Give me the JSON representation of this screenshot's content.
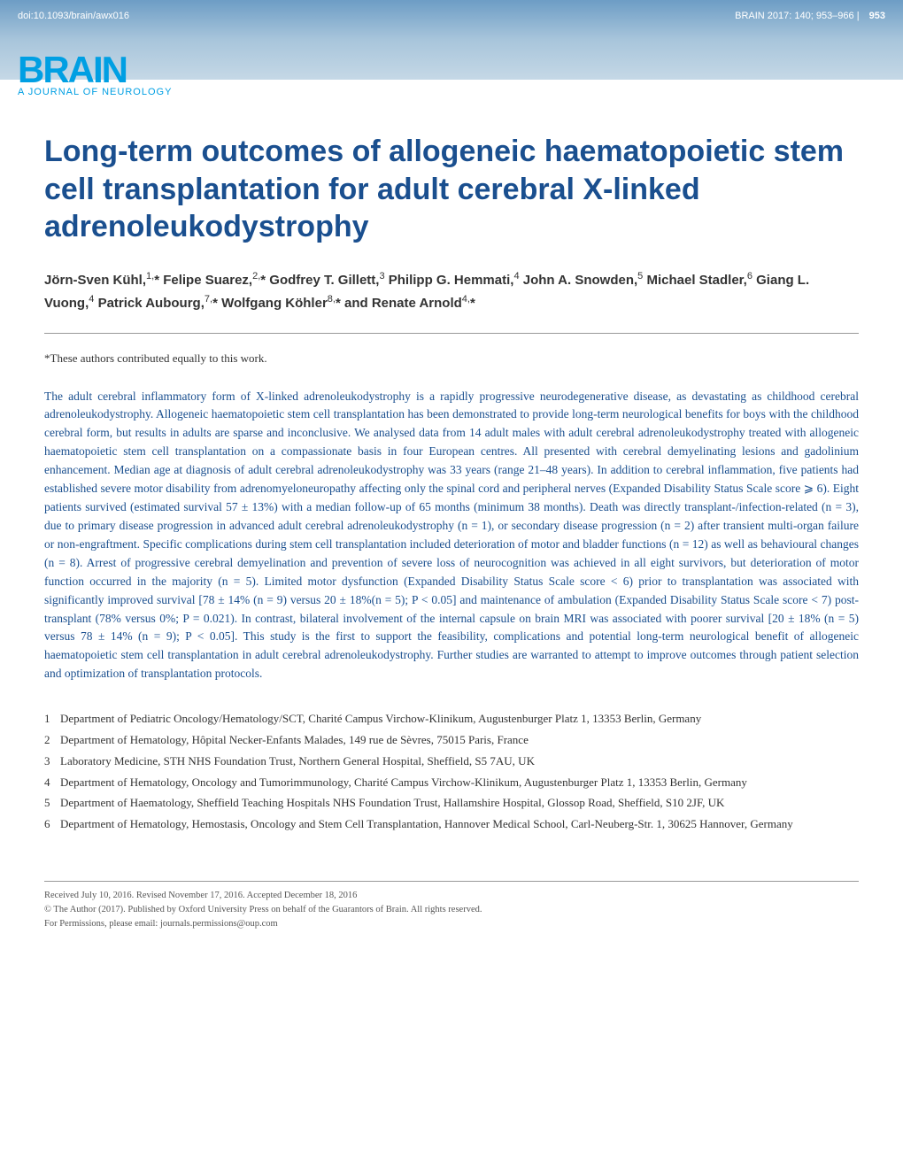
{
  "header": {
    "doi": "doi:10.1093/brain/awx016",
    "issue": "BRAIN 2017: 140; 953–966",
    "page": "953",
    "logo_main": "BRAIN",
    "logo_sub": "A JOURNAL OF NEUROLOGY"
  },
  "title": "Long-term outcomes of allogeneic haematopoietic stem cell transplantation for adult cerebral X-linked adrenoleukodystrophy",
  "authors_html": "Jörn-Sven Kühl,<sup>1,</sup>* Felipe Suarez,<sup>2,</sup>* Godfrey T. Gillett,<sup>3</sup> Philipp G. Hemmati,<sup>4</sup> John A. Snowden,<sup>5</sup> Michael Stadler,<sup>6</sup> Giang L. Vuong,<sup>4</sup> Patrick Aubourg,<sup>7,</sup>* Wolfgang Köhler<sup>8,</sup>* and Renate Arnold<sup>4,</sup>*",
  "contrib_note": "*These authors contributed equally to this work.",
  "abstract": "The adult cerebral inflammatory form of X-linked adrenoleukodystrophy is a rapidly progressive neurodegenerative disease, as devastating as childhood cerebral adrenoleukodystrophy. Allogeneic haematopoietic stem cell transplantation has been demonstrated to provide long-term neurological benefits for boys with the childhood cerebral form, but results in adults are sparse and inconclusive. We analysed data from 14 adult males with adult cerebral adrenoleukodystrophy treated with allogeneic haematopoietic stem cell transplantation on a compassionate basis in four European centres. All presented with cerebral demyelinating lesions and gadolinium enhancement. Median age at diagnosis of adult cerebral adrenoleukodystrophy was 33 years (range 21–48 years). In addition to cerebral inflammation, five patients had established severe motor disability from adrenomyeloneuropathy affecting only the spinal cord and peripheral nerves (Expanded Disability Status Scale score ⩾ 6). Eight patients survived (estimated survival 57 ± 13%) with a median follow-up of 65 months (minimum 38 months). Death was directly transplant-/infection-related (n = 3), due to primary disease progression in advanced adult cerebral adrenoleukodystrophy (n = 1), or secondary disease progression (n = 2) after transient multi-organ failure or non-engraftment. Specific complications during stem cell transplantation included deterioration of motor and bladder functions (n = 12) as well as behavioural changes (n = 8). Arrest of progressive cerebral demyelination and prevention of severe loss of neurocognition was achieved in all eight survivors, but deterioration of motor function occurred in the majority (n = 5). Limited motor dysfunction (Expanded Disability Status Scale score < 6) prior to transplantation was associated with significantly improved survival [78 ± 14% (n = 9) versus 20 ± 18%(n = 5); P < 0.05] and maintenance of ambulation (Expanded Disability Status Scale score < 7) post-transplant (78% versus 0%; P = 0.021). In contrast, bilateral involvement of the internal capsule on brain MRI was associated with poorer survival [20 ± 18% (n = 5) versus 78 ± 14% (n = 9); P < 0.05]. This study is the first to support the feasibility, complications and potential long-term neurological benefit of allogeneic haematopoietic stem cell transplantation in adult cerebral adrenoleukodystrophy. Further studies are warranted to attempt to improve outcomes through patient selection and optimization of transplantation protocols.",
  "affiliations": [
    {
      "num": "1",
      "text": "Department of Pediatric Oncology/Hematology/SCT, Charité Campus Virchow-Klinikum, Augustenburger Platz 1, 13353 Berlin, Germany"
    },
    {
      "num": "2",
      "text": "Department of Hematology, Hôpital Necker-Enfants Malades, 149 rue de Sèvres, 75015 Paris, France"
    },
    {
      "num": "3",
      "text": "Laboratory Medicine, STH NHS Foundation Trust, Northern General Hospital, Sheffield, S5 7AU, UK"
    },
    {
      "num": "4",
      "text": "Department of Hematology, Oncology and Tumorimmunology, Charité Campus Virchow-Klinikum, Augustenburger Platz 1, 13353 Berlin, Germany"
    },
    {
      "num": "5",
      "text": "Department of Haematology, Sheffield Teaching Hospitals NHS Foundation Trust, Hallamshire Hospital, Glossop Road, Sheffield, S10 2JF, UK"
    },
    {
      "num": "6",
      "text": "Department of Hematology, Hemostasis, Oncology and Stem Cell Transplantation, Hannover Medical School, Carl-Neuberg-Str. 1, 30625 Hannover, Germany"
    }
  ],
  "footer": {
    "received": "Received July 10, 2016. Revised November 17, 2016. Accepted December 18, 2016",
    "copyright": "© The Author (2017). Published by Oxford University Press on behalf of the Guarantors of Brain. All rights reserved.",
    "permissions": "For Permissions, please email: journals.permissions@oup.com"
  },
  "colors": {
    "brand_blue": "#009fe3",
    "title_blue": "#1a4f8f",
    "abstract_blue": "#1a4f8f",
    "header_grad_start": "#6d9dc5",
    "header_grad_end": "#c5d8e6"
  }
}
